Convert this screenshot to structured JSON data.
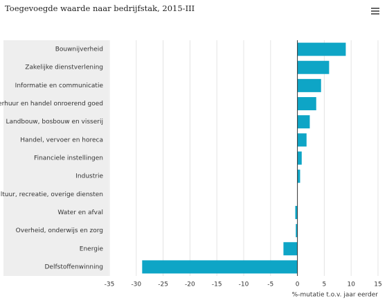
{
  "chart_data": {
    "type": "bar",
    "orientation": "horizontal",
    "title": "Toegevoegde waarde naar bedrijfstak, 2015-III",
    "xlabel": "%-mutatie t.o.v. jaar eerder",
    "categories": [
      "Bouwnijverheid",
      "Zakelijke dienstverlening",
      "Informatie en communicatie",
      "Verhuur en handel onroerend goed",
      "Landbouw, bosbouw en visserij",
      "Handel, vervoer en horeca",
      "Financiele instellingen",
      "Industrie",
      "Cultuur, recreatie, overige diensten",
      "Water en afval",
      "Overheid, onderwijs en zorg",
      "Energie",
      "Delfstoffenwinning"
    ],
    "values": [
      9.0,
      5.9,
      4.4,
      3.5,
      2.3,
      1.7,
      0.8,
      0.5,
      0,
      -0.4,
      -0.3,
      -2.6,
      -28.9
    ],
    "color": "#0ea5c6",
    "xlim": [
      -35,
      15
    ],
    "xticks": [
      -35,
      -30,
      -25,
      -20,
      -15,
      -10,
      -5,
      0,
      5,
      10,
      15
    ],
    "grid": true
  }
}
